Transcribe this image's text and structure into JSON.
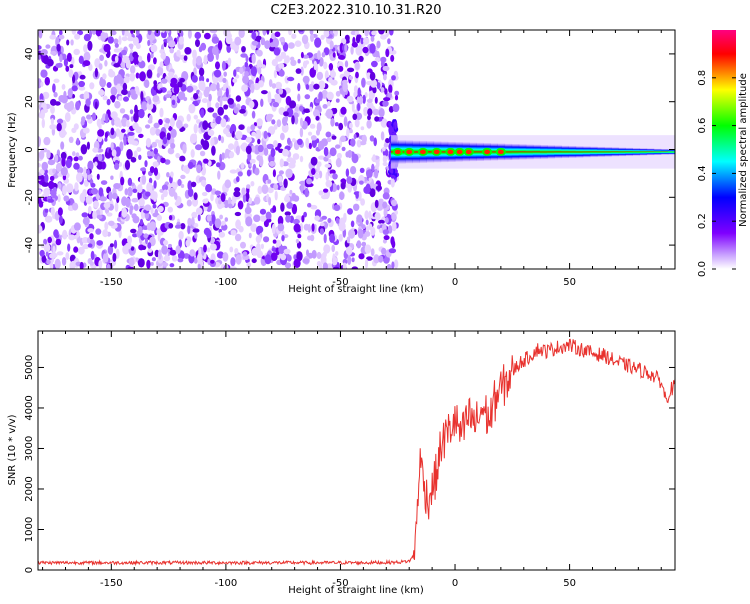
{
  "title": "C2E3.2022.310.10.31.R20",
  "chart_data": [
    {
      "type": "heatmap",
      "xlabel": "Height of straight line (km)",
      "ylabel": "Frequency (Hz)",
      "xlim": [
        -182,
        96
      ],
      "ylim": [
        -50,
        50
      ],
      "x_ticks": [
        -150,
        -100,
        -50,
        0,
        50
      ],
      "y_ticks": [
        -40,
        -20,
        0,
        20,
        40
      ],
      "noise_region": {
        "x": [
          -182,
          -28
        ],
        "y": [
          -50,
          50
        ]
      },
      "signal_band": {
        "x": [
          -28,
          96
        ],
        "y_center": -1,
        "half_width": [
          1,
          5
        ]
      },
      "hot_spots_x": [
        -25,
        -20,
        -14,
        -8,
        -2,
        2,
        6,
        14,
        20
      ],
      "colorbar": {
        "label": "Normalized spectral amplitude",
        "range": [
          0,
          1
        ],
        "ticks": [
          0.0,
          0.2,
          0.4,
          0.6,
          0.8
        ],
        "colors": [
          "#ffffff",
          "#7f00ff",
          "#0000ff",
          "#00ffff",
          "#00ff00",
          "#ffff00",
          "#ff0000",
          "#ff0080"
        ]
      }
    },
    {
      "type": "line",
      "xlabel": "Height of straight line (km)",
      "ylabel": "SNR (10 * v/v)",
      "xlim": [
        -182,
        96
      ],
      "ylim": [
        0,
        5900
      ],
      "x_ticks": [
        -150,
        -100,
        -50,
        0,
        50
      ],
      "y_ticks": [
        0,
        1000,
        2000,
        3000,
        4000,
        5000
      ],
      "color": "#e8322e",
      "x": [
        -182,
        -160,
        -140,
        -120,
        -100,
        -80,
        -60,
        -40,
        -25,
        -20,
        -18,
        -17,
        -16,
        -15,
        -14,
        -12,
        -10,
        -8,
        -6,
        -4,
        -2,
        0,
        3,
        6,
        9,
        12,
        15,
        18,
        22,
        25,
        28,
        32,
        36,
        40,
        45,
        50,
        55,
        60,
        65,
        70,
        75,
        80,
        85,
        90,
        92,
        94,
        96
      ],
      "y": [
        180,
        180,
        180,
        180,
        180,
        180,
        180,
        180,
        190,
        220,
        350,
        900,
        2200,
        2700,
        2300,
        1700,
        2000,
        2400,
        3100,
        3300,
        3500,
        3700,
        3300,
        3800,
        3600,
        4000,
        3700,
        4300,
        4600,
        4900,
        5100,
        5250,
        5450,
        5400,
        5500,
        5550,
        5450,
        5350,
        5300,
        5150,
        5050,
        4950,
        4850,
        4650,
        4200,
        4450,
        4550
      ]
    }
  ]
}
